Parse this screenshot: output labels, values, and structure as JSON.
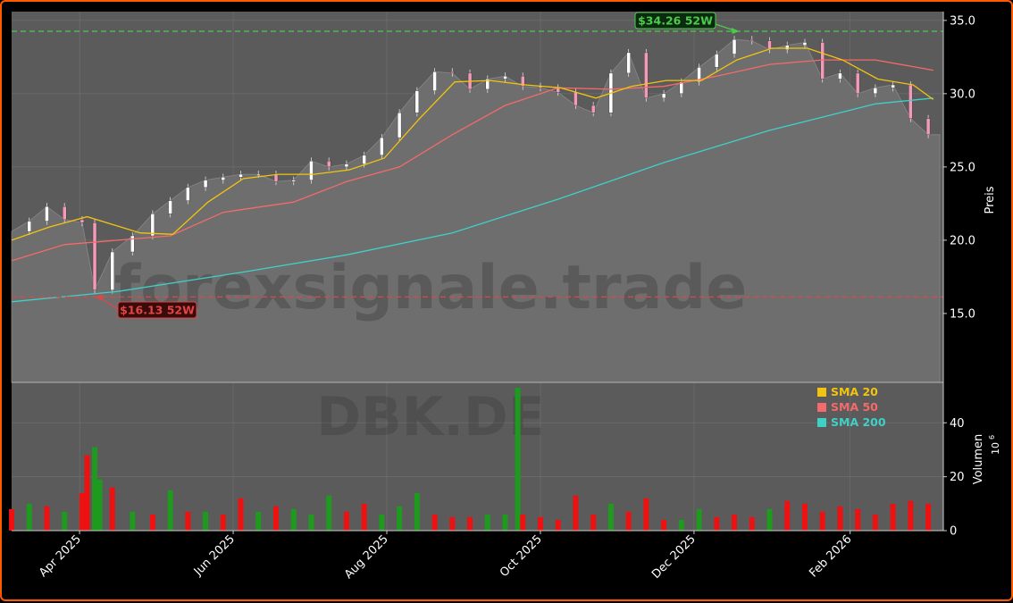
{
  "colors": {
    "background": "#000000",
    "plot_area": "#5b5b5b",
    "price_fill": "#6e6e6e",
    "grid": "#7a7a7a",
    "up": "#1e9a1e",
    "down": "#ee1111",
    "sma20": "#f2c40f",
    "sma50": "#f56a6a",
    "sma200": "#3fd0c8",
    "high_line": "#4ccb4c",
    "low_line": "#e04646",
    "frame": "#ff5a00"
  },
  "chart_data": {
    "type": "line",
    "watermark": "forexsignale.trade",
    "ticker_watermark": "DBK.DE",
    "price_axis": {
      "label": "Preis",
      "ticks": [
        "15.0",
        "20.0",
        "25.0",
        "30.0",
        "35.0"
      ],
      "ylim": [
        10.3,
        35.6
      ]
    },
    "volume_axis": {
      "label": "Volumen",
      "exponent": "10",
      "exponent_power": "6",
      "ticks": [
        "0",
        "20",
        "40"
      ],
      "ylim": [
        0,
        55
      ]
    },
    "x_ticks": [
      "Apr 2025",
      "Jun 2025",
      "Aug 2025",
      "Oct 2025",
      "Dec 2025",
      "Feb 2026"
    ],
    "x_range": [
      "2025-03-05",
      "2026-03-10"
    ],
    "high_52w": {
      "value": 34.26,
      "label": "$34.26 52W",
      "date": "2025-12-19"
    },
    "low_52w": {
      "value": 16.13,
      "label": "$16.13 52W",
      "date": "2025-04-07"
    },
    "legend": [
      {
        "name": "SMA 20",
        "color": "#f2c40f"
      },
      {
        "name": "SMA 50",
        "color": "#f56a6a"
      },
      {
        "name": "SMA 200",
        "color": "#3fd0c8"
      }
    ],
    "close": [
      [
        "2025-03-05",
        20.6
      ],
      [
        "2025-03-12",
        21.3
      ],
      [
        "2025-03-19",
        22.3
      ],
      [
        "2025-03-26",
        21.4
      ],
      [
        "2025-04-02",
        21.2
      ],
      [
        "2025-04-07",
        16.6
      ],
      [
        "2025-04-14",
        19.2
      ],
      [
        "2025-04-22",
        20.3
      ],
      [
        "2025-04-30",
        21.8
      ],
      [
        "2025-05-07",
        22.7
      ],
      [
        "2025-05-14",
        23.6
      ],
      [
        "2025-05-21",
        24.1
      ],
      [
        "2025-05-28",
        24.3
      ],
      [
        "2025-06-04",
        24.5
      ],
      [
        "2025-06-11",
        24.5
      ],
      [
        "2025-06-18",
        24.0
      ],
      [
        "2025-06-25",
        24.1
      ],
      [
        "2025-07-02",
        25.4
      ],
      [
        "2025-07-09",
        25.0
      ],
      [
        "2025-07-16",
        25.2
      ],
      [
        "2025-07-23",
        25.8
      ],
      [
        "2025-07-30",
        27.0
      ],
      [
        "2025-08-06",
        28.7
      ],
      [
        "2025-08-13",
        30.2
      ],
      [
        "2025-08-20",
        31.5
      ],
      [
        "2025-08-27",
        31.4
      ],
      [
        "2025-09-03",
        30.3
      ],
      [
        "2025-09-10",
        31.0
      ],
      [
        "2025-09-17",
        31.2
      ],
      [
        "2025-09-24",
        30.5
      ],
      [
        "2025-10-01",
        30.4
      ],
      [
        "2025-10-08",
        30.1
      ],
      [
        "2025-10-15",
        29.2
      ],
      [
        "2025-10-22",
        28.7
      ],
      [
        "2025-10-29",
        31.4
      ],
      [
        "2025-11-05",
        32.8
      ],
      [
        "2025-11-12",
        29.7
      ],
      [
        "2025-11-19",
        30.0
      ],
      [
        "2025-11-26",
        30.8
      ],
      [
        "2025-12-03",
        31.8
      ],
      [
        "2025-12-10",
        32.7
      ],
      [
        "2025-12-17",
        33.7
      ],
      [
        "2025-12-24",
        33.6
      ],
      [
        "2025-12-31",
        33.0
      ],
      [
        "2026-01-07",
        33.3
      ],
      [
        "2026-01-14",
        33.5
      ],
      [
        "2026-01-21",
        31.0
      ],
      [
        "2026-01-28",
        31.4
      ],
      [
        "2026-02-04",
        30.0
      ],
      [
        "2026-02-11",
        30.4
      ],
      [
        "2026-02-18",
        30.6
      ],
      [
        "2026-02-25",
        28.3
      ],
      [
        "2026-03-04",
        27.2
      ]
    ],
    "sma20": [
      [
        "2025-03-05",
        20.0
      ],
      [
        "2025-03-20",
        20.9
      ],
      [
        "2025-04-04",
        21.6
      ],
      [
        "2025-04-25",
        20.5
      ],
      [
        "2025-05-08",
        20.4
      ],
      [
        "2025-05-22",
        22.6
      ],
      [
        "2025-06-05",
        24.2
      ],
      [
        "2025-06-19",
        24.5
      ],
      [
        "2025-07-03",
        24.5
      ],
      [
        "2025-07-17",
        24.8
      ],
      [
        "2025-07-31",
        25.6
      ],
      [
        "2025-08-14",
        28.3
      ],
      [
        "2025-08-28",
        30.8
      ],
      [
        "2025-09-11",
        30.9
      ],
      [
        "2025-09-25",
        30.6
      ],
      [
        "2025-10-09",
        30.4
      ],
      [
        "2025-10-23",
        29.7
      ],
      [
        "2025-11-06",
        30.5
      ],
      [
        "2025-11-20",
        30.9
      ],
      [
        "2025-12-04",
        30.9
      ],
      [
        "2025-12-18",
        32.3
      ],
      [
        "2026-01-01",
        33.1
      ],
      [
        "2026-01-15",
        33.1
      ],
      [
        "2026-01-29",
        32.3
      ],
      [
        "2026-02-12",
        31.0
      ],
      [
        "2026-02-26",
        30.6
      ],
      [
        "2026-03-06",
        29.6
      ]
    ],
    "sma50": [
      [
        "2025-03-05",
        18.6
      ],
      [
        "2025-03-26",
        19.7
      ],
      [
        "2025-04-16",
        20.0
      ],
      [
        "2025-05-07",
        20.3
      ],
      [
        "2025-05-28",
        21.9
      ],
      [
        "2025-06-25",
        22.6
      ],
      [
        "2025-07-16",
        24.0
      ],
      [
        "2025-08-06",
        25.0
      ],
      [
        "2025-08-27",
        27.2
      ],
      [
        "2025-09-17",
        29.2
      ],
      [
        "2025-10-08",
        30.4
      ],
      [
        "2025-10-29",
        30.3
      ],
      [
        "2025-11-19",
        30.5
      ],
      [
        "2025-12-10",
        31.2
      ],
      [
        "2025-12-31",
        32.0
      ],
      [
        "2026-01-21",
        32.3
      ],
      [
        "2026-02-11",
        32.3
      ],
      [
        "2026-03-06",
        31.6
      ]
    ],
    "sma200": [
      [
        "2025-03-05",
        15.8
      ],
      [
        "2025-04-16",
        16.5
      ],
      [
        "2025-06-04",
        17.8
      ],
      [
        "2025-07-16",
        19.0
      ],
      [
        "2025-08-27",
        20.5
      ],
      [
        "2025-10-08",
        22.8
      ],
      [
        "2025-11-19",
        25.3
      ],
      [
        "2025-12-31",
        27.5
      ],
      [
        "2026-02-11",
        29.3
      ],
      [
        "2026-03-06",
        29.7
      ]
    ],
    "volume": [
      [
        "2025-03-05",
        8,
        "down"
      ],
      [
        "2025-03-12",
        10,
        "up"
      ],
      [
        "2025-03-19",
        9,
        "down"
      ],
      [
        "2025-03-26",
        7,
        "up"
      ],
      [
        "2025-04-02",
        14,
        "down"
      ],
      [
        "2025-04-04",
        28,
        "down"
      ],
      [
        "2025-04-07",
        31,
        "up"
      ],
      [
        "2025-04-09",
        19,
        "up"
      ],
      [
        "2025-04-14",
        16,
        "down"
      ],
      [
        "2025-04-22",
        7,
        "up"
      ],
      [
        "2025-04-30",
        6,
        "down"
      ],
      [
        "2025-05-07",
        15,
        "up"
      ],
      [
        "2025-05-14",
        7,
        "down"
      ],
      [
        "2025-05-21",
        7,
        "up"
      ],
      [
        "2025-05-28",
        6,
        "down"
      ],
      [
        "2025-06-04",
        12,
        "down"
      ],
      [
        "2025-06-11",
        7,
        "up"
      ],
      [
        "2025-06-18",
        9,
        "down"
      ],
      [
        "2025-06-25",
        8,
        "up"
      ],
      [
        "2025-07-02",
        6,
        "up"
      ],
      [
        "2025-07-09",
        13,
        "up"
      ],
      [
        "2025-07-16",
        7,
        "down"
      ],
      [
        "2025-07-23",
        10,
        "down"
      ],
      [
        "2025-07-30",
        6,
        "up"
      ],
      [
        "2025-08-06",
        9,
        "up"
      ],
      [
        "2025-08-13",
        14,
        "up"
      ],
      [
        "2025-08-20",
        6,
        "down"
      ],
      [
        "2025-08-27",
        5,
        "down"
      ],
      [
        "2025-09-03",
        5,
        "down"
      ],
      [
        "2025-09-10",
        6,
        "up"
      ],
      [
        "2025-09-17",
        6,
        "up"
      ],
      [
        "2025-09-22",
        53,
        "up"
      ],
      [
        "2025-09-24",
        6,
        "down"
      ],
      [
        "2025-10-01",
        5,
        "down"
      ],
      [
        "2025-10-08",
        4,
        "down"
      ],
      [
        "2025-10-15",
        13,
        "down"
      ],
      [
        "2025-10-22",
        6,
        "down"
      ],
      [
        "2025-10-29",
        10,
        "up"
      ],
      [
        "2025-11-05",
        7,
        "down"
      ],
      [
        "2025-11-12",
        12,
        "down"
      ],
      [
        "2025-11-19",
        4,
        "down"
      ],
      [
        "2025-11-26",
        4,
        "up"
      ],
      [
        "2025-12-03",
        8,
        "up"
      ],
      [
        "2025-12-10",
        5,
        "down"
      ],
      [
        "2025-12-17",
        6,
        "down"
      ],
      [
        "2025-12-24",
        5,
        "down"
      ],
      [
        "2025-12-31",
        8,
        "up"
      ],
      [
        "2026-01-07",
        11,
        "down"
      ],
      [
        "2026-01-14",
        10,
        "down"
      ],
      [
        "2026-01-21",
        7,
        "down"
      ],
      [
        "2026-01-28",
        9,
        "down"
      ],
      [
        "2026-02-04",
        8,
        "down"
      ],
      [
        "2026-02-11",
        6,
        "down"
      ],
      [
        "2026-02-18",
        10,
        "down"
      ],
      [
        "2026-02-25",
        11,
        "down"
      ],
      [
        "2026-03-04",
        10,
        "down"
      ]
    ]
  }
}
